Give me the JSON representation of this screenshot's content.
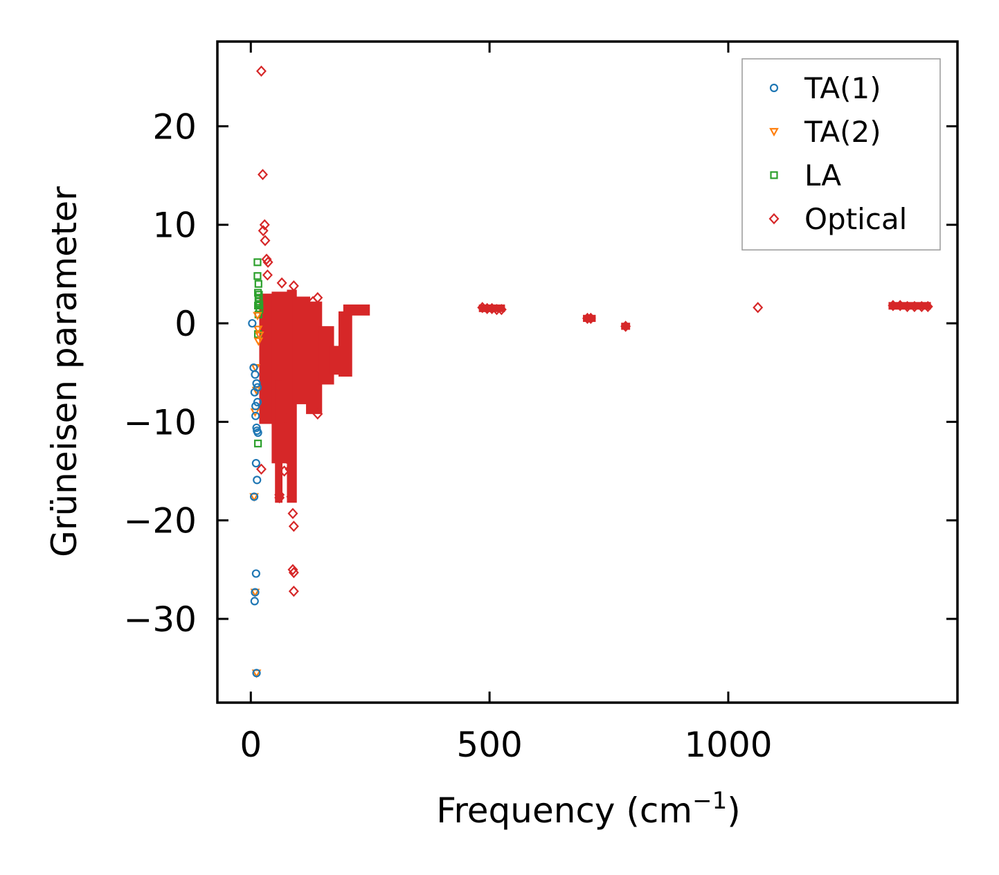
{
  "chart_data": {
    "type": "scatter",
    "title": "",
    "xlabel": "Frequency (cm",
    "xlabel_sup": "−1",
    "xlabel_end": ")",
    "ylabel": "Grüneisen parameter",
    "xlim": [
      -70,
      1480
    ],
    "ylim": [
      -38.5,
      28.6
    ],
    "xticks": [
      0,
      500,
      1000
    ],
    "xtick_labels": [
      "0",
      "500",
      "1000"
    ],
    "yticks": [
      -30,
      -20,
      -10,
      0,
      10,
      20
    ],
    "ytick_labels": [
      "−30",
      "−20",
      "−10",
      "0",
      "10",
      "20"
    ],
    "grid": false,
    "legend_position": "top-right",
    "series": [
      {
        "name": "TA(1)",
        "marker": "circle",
        "color": "#1f77b4",
        "points": [
          [
            3,
            0
          ],
          [
            6,
            -4.5
          ],
          [
            9,
            -5.2
          ],
          [
            12,
            -6.1
          ],
          [
            8,
            -7.0
          ],
          [
            14,
            -8.0
          ],
          [
            10,
            -9.4
          ],
          [
            12,
            -10.6
          ],
          [
            15,
            -11.1
          ],
          [
            11,
            -14.2
          ],
          [
            13,
            -15.9
          ],
          [
            7,
            -17.6
          ],
          [
            11,
            -25.4
          ],
          [
            9,
            -27.3
          ],
          [
            8,
            -28.2
          ],
          [
            12,
            -35.5
          ],
          [
            14,
            -6.5
          ],
          [
            10,
            -8.4
          ],
          [
            13,
            -10.9
          ]
        ]
      },
      {
        "name": "TA(2)",
        "marker": "triangle-down",
        "color": "#ff7f0e",
        "points": [
          [
            16,
            -1.8
          ],
          [
            18,
            -1.2
          ],
          [
            10,
            -4.5
          ],
          [
            12,
            -6.8
          ],
          [
            9,
            -9.0
          ],
          [
            7,
            -17.6
          ],
          [
            9,
            -27.3
          ],
          [
            12,
            -35.5
          ],
          [
            15,
            -0.6
          ],
          [
            14,
            0.8
          ]
        ]
      },
      {
        "name": "LA",
        "marker": "square",
        "color": "#2ca02c",
        "points": [
          [
            14,
            6.2
          ],
          [
            14,
            4.8
          ],
          [
            16,
            4.0
          ],
          [
            15,
            3.1
          ],
          [
            16,
            2.6
          ],
          [
            17,
            2.2
          ],
          [
            15,
            1.8
          ],
          [
            18,
            1.4
          ],
          [
            16,
            0.9
          ],
          [
            15,
            -1.1
          ],
          [
            15,
            -12.2
          ],
          [
            17,
            2.9
          ],
          [
            18,
            1.9
          ]
        ]
      },
      {
        "name": "Optical",
        "marker": "diamond",
        "color": "#d62728",
        "points": [
          [
            22,
            25.6
          ],
          [
            25,
            15.1
          ],
          [
            29,
            10.0
          ],
          [
            26,
            9.4
          ],
          [
            30,
            8.4
          ],
          [
            33,
            6.5
          ],
          [
            36,
            6.2
          ],
          [
            35,
            4.9
          ],
          [
            65,
            4.1
          ],
          [
            90,
            3.8
          ],
          [
            140,
            2.6
          ],
          [
            130,
            2.2
          ],
          [
            88,
            -25.0
          ],
          [
            90,
            -25.3
          ],
          [
            90,
            -27.2
          ],
          [
            90,
            -20.6
          ],
          [
            88,
            -19.3
          ],
          [
            85,
            -17.6
          ],
          [
            60,
            -17.7
          ],
          [
            60,
            -17.4
          ],
          [
            70,
            -15.0
          ],
          [
            82,
            -14.8
          ],
          [
            75,
            -13.7
          ],
          [
            22,
            -14.8
          ],
          [
            60,
            -12.7
          ],
          [
            70,
            -10.4
          ],
          [
            80,
            -9.1
          ],
          [
            140,
            -9.2
          ],
          [
            485,
            1.6
          ],
          [
            495,
            1.5
          ],
          [
            505,
            1.5
          ],
          [
            515,
            1.4
          ],
          [
            525,
            1.4
          ],
          [
            705,
            0.5
          ],
          [
            712,
            0.5
          ],
          [
            785,
            -0.3
          ],
          [
            1062,
            1.6
          ],
          [
            1345,
            1.8
          ],
          [
            1360,
            1.8
          ],
          [
            1375,
            1.7
          ],
          [
            1390,
            1.7
          ],
          [
            1405,
            1.7
          ],
          [
            1418,
            1.7
          ]
        ],
        "segments": [
          {
            "x": [
              22,
              48
            ],
            "y": [
              -10,
              2.8
            ]
          },
          {
            "x": [
              48,
              80
            ],
            "y": [
              -14,
              3.0
            ]
          },
          {
            "x": [
              55,
              62
            ],
            "y": [
              -18,
              -6
            ]
          },
          {
            "x": [
              80,
              92
            ],
            "y": [
              -18,
              3.2
            ]
          },
          {
            "x": [
              92,
              120
            ],
            "y": [
              -8,
              2.5
            ]
          },
          {
            "x": [
              120,
              145
            ],
            "y": [
              -9,
              2.0
            ]
          },
          {
            "x": [
              145,
              170
            ],
            "y": [
              -6,
              -0.5
            ]
          },
          {
            "x": [
              170,
              200
            ],
            "y": [
              -5,
              -2.5
            ]
          },
          {
            "x": [
              188,
              208
            ],
            "y": [
              -5.2,
              1.0
            ]
          },
          {
            "x": [
              198,
              245
            ],
            "y": [
              1.0,
              1.7
            ]
          },
          {
            "x": [
              482,
              528
            ],
            "y": [
              1.35,
              1.7
            ]
          },
          {
            "x": [
              700,
              718
            ],
            "y": [
              0.35,
              0.65
            ]
          },
          {
            "x": [
              780,
              790
            ],
            "y": [
              -0.45,
              -0.15
            ]
          },
          {
            "x": [
              1340,
              1420
            ],
            "y": [
              1.6,
              1.95
            ]
          }
        ]
      }
    ]
  }
}
